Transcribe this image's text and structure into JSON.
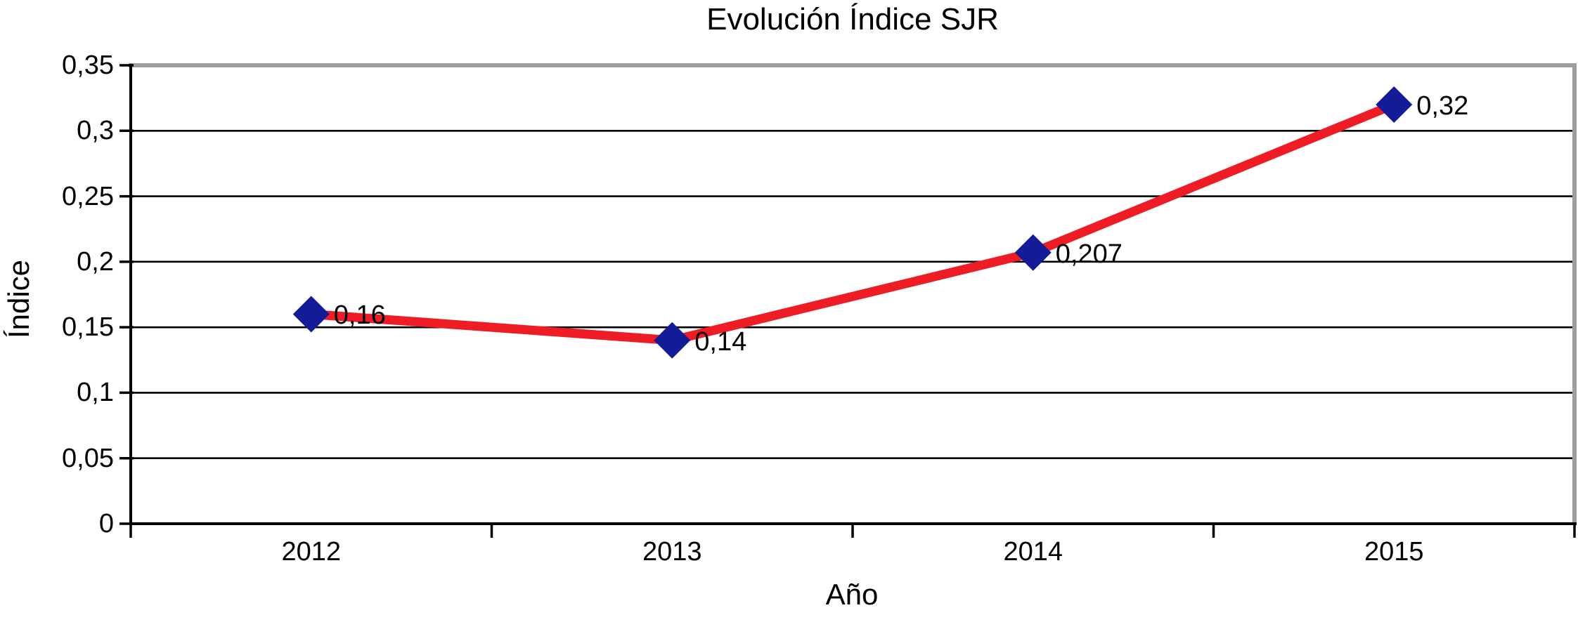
{
  "chart_data": {
    "type": "line",
    "title": "Evolución Índice SJR",
    "xlabel": "Año",
    "ylabel": "Índice",
    "categories": [
      "2012",
      "2013",
      "2014",
      "2015"
    ],
    "series": [
      {
        "name": "Índice SJR",
        "values": [
          0.16,
          0.14,
          0.207,
          0.32
        ]
      }
    ],
    "data_labels": [
      "0,16",
      "0,14",
      "0,207",
      "0,32"
    ],
    "ylim": [
      0,
      0.35
    ],
    "ytick_step": 0.05,
    "ytick_labels": [
      "0",
      "0,05",
      "0,1",
      "0,15",
      "0,2",
      "0,25",
      "0,3",
      "0,35"
    ],
    "grid": "horizontal",
    "legend": "none",
    "marker_shape": "diamond",
    "colors": {
      "line": "#ee1c25",
      "marker": "#141b96",
      "gridline": "#000000",
      "axis": "#000000",
      "plot_border": "#9e9e9e",
      "text": "#000000",
      "background": "#ffffff"
    }
  }
}
